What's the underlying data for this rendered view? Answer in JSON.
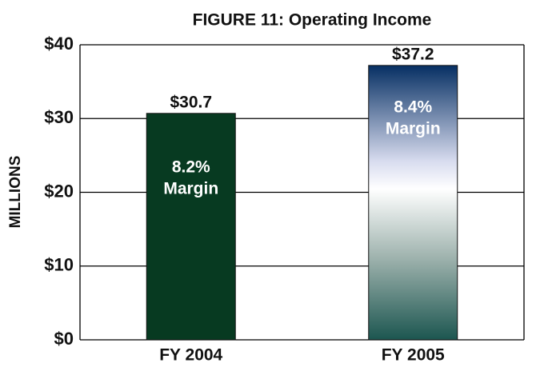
{
  "chart_data": {
    "type": "bar",
    "title": "FIGURE 11: Operating Income",
    "y_label": "MILLIONS",
    "categories": [
      "FY 2004",
      "FY 2005"
    ],
    "values": [
      30.7,
      37.2
    ],
    "value_labels": [
      "$30.7",
      "$37.2"
    ],
    "annotations": [
      [
        "8.2%",
        "Margin"
      ],
      [
        "8.4%",
        "Margin"
      ]
    ],
    "colors": [
      [
        "#073a21"
      ],
      [
        "#062f63",
        "#d8dcef",
        "#ffffff",
        "#9fb3ae",
        "#1c5650"
      ]
    ],
    "ylim": [
      0,
      40
    ],
    "yticks": [
      {
        "value": 0,
        "label": "$0"
      },
      {
        "value": 10,
        "label": "$10"
      },
      {
        "value": 20,
        "label": "$20"
      },
      {
        "value": 30,
        "label": "$30"
      },
      {
        "value": 40,
        "label": "$40"
      }
    ],
    "grid": true
  }
}
